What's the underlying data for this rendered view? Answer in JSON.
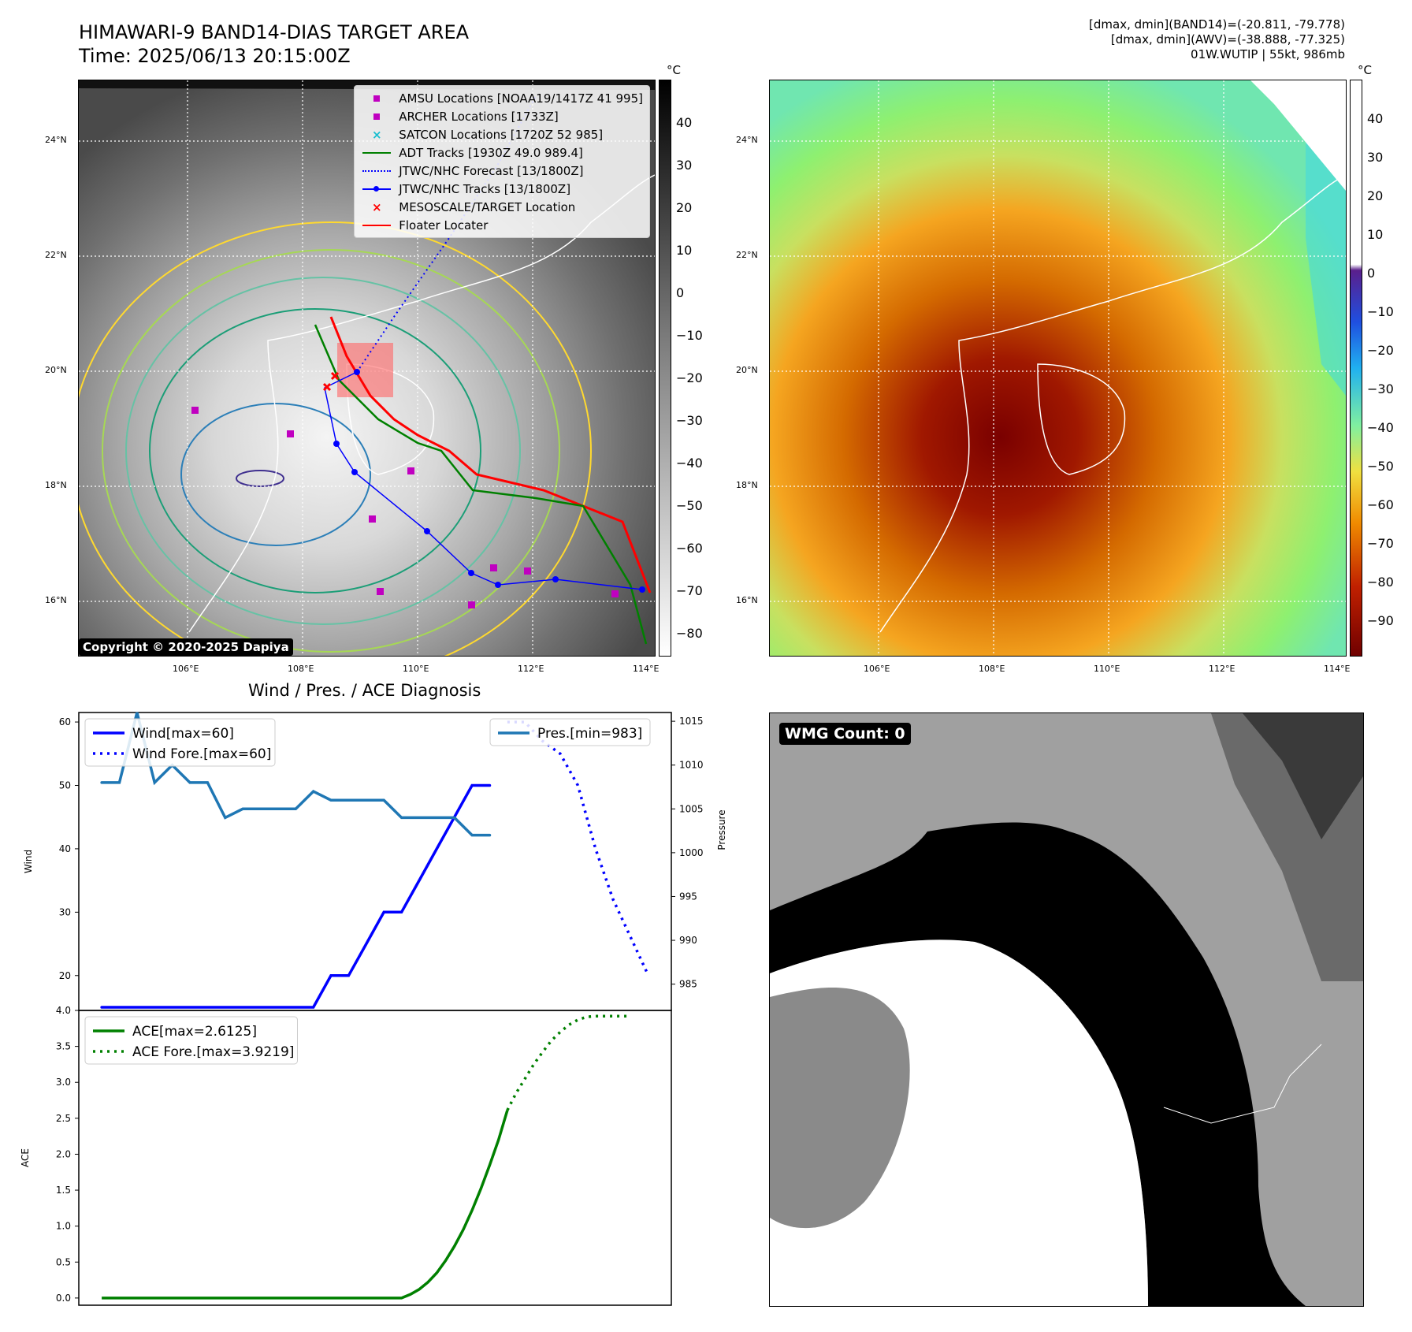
{
  "header": {
    "title": "HIMAWARI-9 BAND14-DIAS TARGET AREA",
    "time": "Time: 2025/06/13 20:15:00Z",
    "info_line1": "[dmax, dmin](BAND14)=(-20.811, -79.778)",
    "info_line2": "[dmax, dmin](AWV)=(-38.888, -77.325)",
    "info_line3": "01W.WUTIP | 55kt, 986mb"
  },
  "map": {
    "lon_labels": [
      "106°E",
      "108°E",
      "110°E",
      "112°E",
      "114°E"
    ],
    "lat_labels": [
      "24°N",
      "22°N",
      "20°N",
      "18°N",
      "16°N"
    ],
    "colorbar_unit": "°C",
    "gray_colorbar_ticks": [
      "40",
      "30",
      "20",
      "10",
      "0",
      "−10",
      "−20",
      "−30",
      "−40",
      "−50",
      "−60",
      "−70",
      "−80"
    ],
    "color_colorbar_ticks": [
      "40",
      "30",
      "20",
      "10",
      "0",
      "−10",
      "−20",
      "−30",
      "−40",
      "−50",
      "−60",
      "−70",
      "−80",
      "−90"
    ],
    "copyright": "Copyright © 2020-2025 Dapiya",
    "legend": [
      {
        "label": "AMSU Locations [NOAA19/1417Z 41 995]",
        "symbol": "square",
        "color": "#c000c0"
      },
      {
        "label": "ARCHER Locations [1733Z]",
        "symbol": "square",
        "color": "#c000c0"
      },
      {
        "label": "SATCON Locations [1720Z 52 985]",
        "symbol": "x",
        "color": "#17becf"
      },
      {
        "label": "ADT Tracks [1930Z 49.0 989.4]",
        "symbol": "line",
        "color": "#008000"
      },
      {
        "label": "JTWC/NHC Forecast [13/1800Z]",
        "symbol": "dotted",
        "color": "#0000ff"
      },
      {
        "label": "JTWC/NHC Tracks [13/1800Z]",
        "symbol": "line-dot",
        "color": "#0000ff"
      },
      {
        "label": "MESOSCALE/TARGET Location",
        "symbol": "x",
        "color": "#ff0000"
      },
      {
        "label": "Floater Locater",
        "symbol": "line",
        "color": "#ff0000"
      }
    ]
  },
  "diagnosis": {
    "title": "Wind / Pres. / ACE Diagnosis",
    "wmg_label": "WMG Count: 0"
  },
  "chart_data": [
    {
      "type": "line",
      "title": "Wind / Pres. / ACE Diagnosis",
      "ylabel": "Wind",
      "y2label": "Pressure",
      "ylim": [
        14.5,
        61.5
      ],
      "y2lim": [
        982,
        1016
      ],
      "yticks": [
        20,
        30,
        40,
        50,
        60
      ],
      "y2ticks": [
        985,
        990,
        995,
        1000,
        1005,
        1010,
        1015
      ],
      "series": [
        {
          "name": "Wind[max=60]",
          "color": "#0000ff",
          "style": "solid",
          "x": [
            0,
            1,
            2,
            3,
            4,
            5,
            6,
            7,
            8,
            9,
            10,
            11,
            12,
            13,
            14,
            15,
            16,
            17,
            18,
            19,
            20,
            21,
            22
          ],
          "values": [
            15,
            15,
            15,
            15,
            15,
            15,
            15,
            15,
            15,
            15,
            15,
            15,
            15,
            20,
            20,
            25,
            30,
            30,
            35,
            40,
            45,
            50,
            50
          ]
        },
        {
          "name": "Wind Fore.[max=60]",
          "color": "#0000ff",
          "style": "dotted",
          "x": [
            23,
            24,
            25,
            26,
            27,
            28,
            29,
            30,
            31
          ],
          "values": [
            60,
            60,
            57,
            55,
            50,
            40,
            32,
            26,
            20
          ]
        },
        {
          "name": "Pres.[min=983]",
          "color": "#1f77b4",
          "style": "solid",
          "axis": "right",
          "x": [
            0,
            1,
            2,
            3,
            4,
            5,
            6,
            7,
            8,
            9,
            10,
            11,
            12,
            13,
            14,
            15,
            16,
            17,
            18,
            19,
            20,
            21,
            22
          ],
          "values": [
            1008,
            1008,
            1016,
            1008,
            1010,
            1008,
            1008,
            1004,
            1005,
            1005,
            1005,
            1005,
            1007,
            1006,
            1006,
            1006,
            1006,
            1004,
            1004,
            1004,
            1004,
            1002,
            1002
          ]
        }
      ]
    },
    {
      "type": "line",
      "ylabel": "ACE",
      "ylim": [
        -0.1,
        4.0
      ],
      "yticks": [
        0.0,
        0.5,
        1.0,
        1.5,
        2.0,
        2.5,
        3.0,
        3.5,
        4.0
      ],
      "series": [
        {
          "name": "ACE[max=2.6125]",
          "color": "#008000",
          "style": "solid",
          "x": [
            0,
            17,
            17.5,
            18,
            18.5,
            19,
            19.5,
            20,
            20.5,
            21,
            21.5,
            22,
            22.5,
            23
          ],
          "values": [
            0,
            0,
            0.05,
            0.12,
            0.22,
            0.35,
            0.52,
            0.72,
            0.95,
            1.22,
            1.52,
            1.85,
            2.2,
            2.6125
          ]
        },
        {
          "name": "ACE Fore.[max=3.9219]",
          "color": "#008000",
          "style": "dotted",
          "x": [
            23,
            23.5,
            24,
            24.5,
            25,
            25.5,
            26,
            26.5,
            27,
            27.5,
            28,
            29,
            30
          ],
          "values": [
            2.6125,
            2.85,
            3.05,
            3.25,
            3.42,
            3.58,
            3.7,
            3.8,
            3.87,
            3.91,
            3.92,
            3.92,
            3.92
          ]
        }
      ]
    }
  ]
}
